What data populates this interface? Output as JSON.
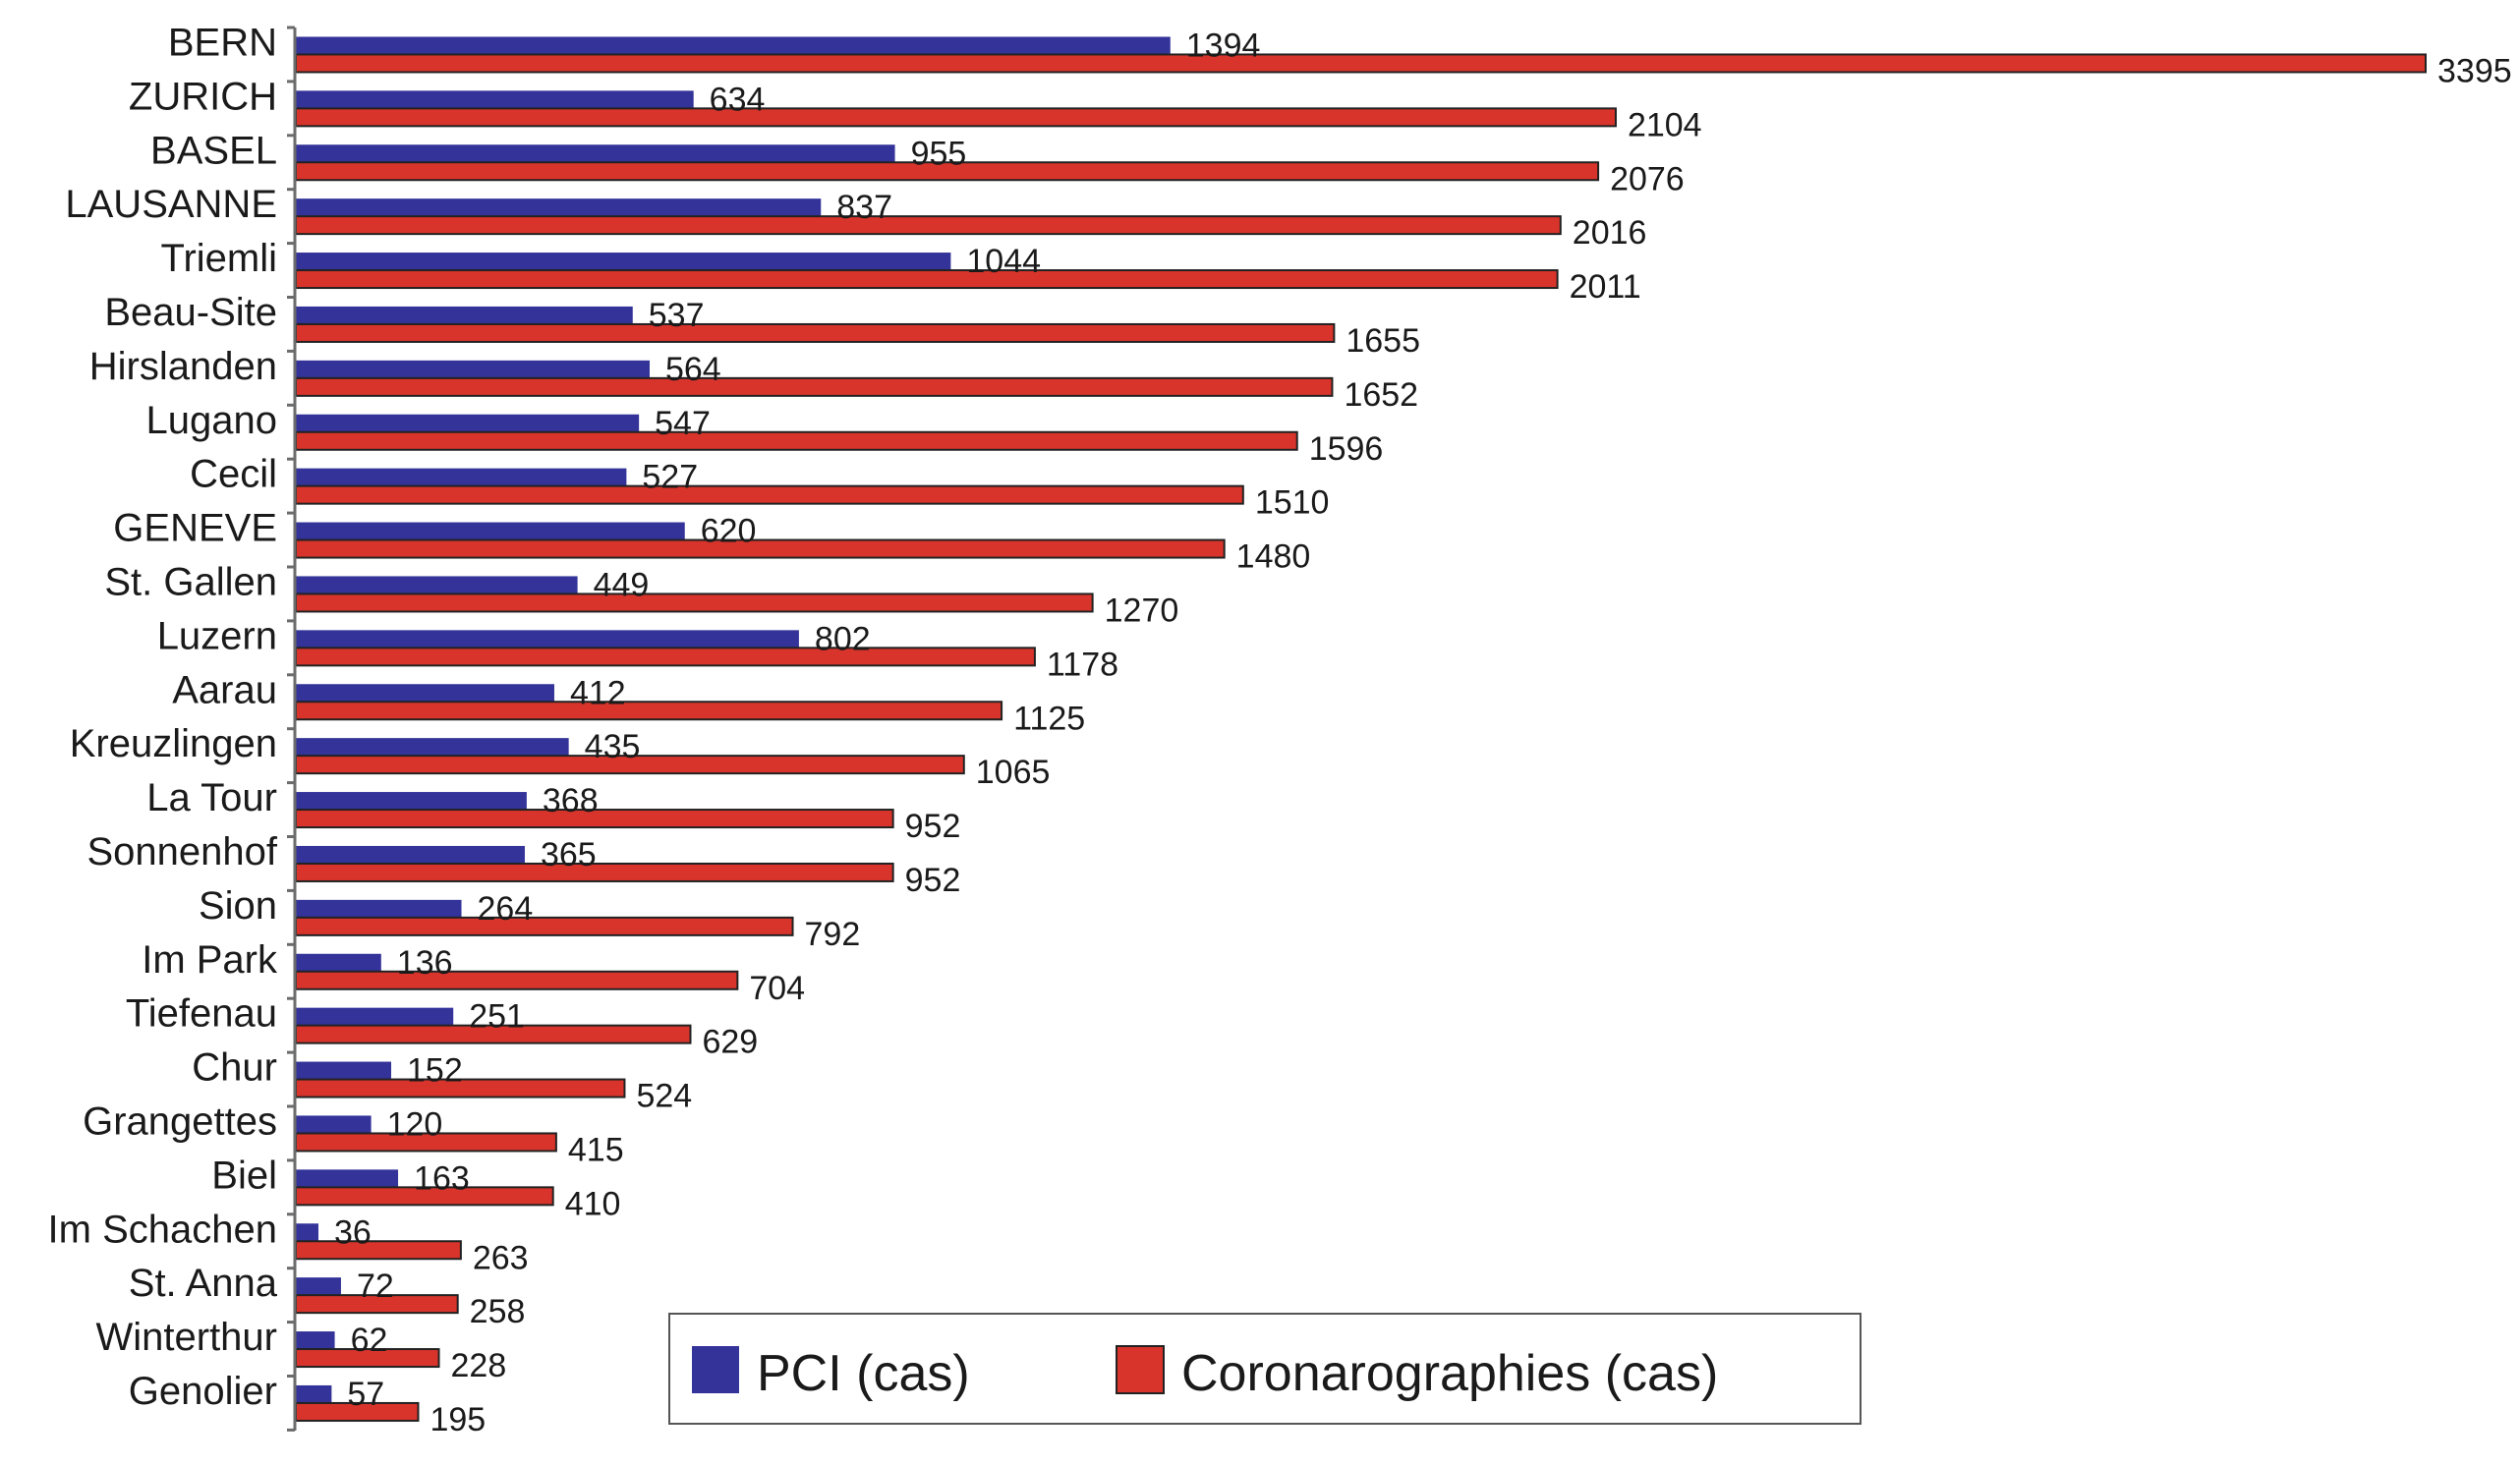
{
  "chart_data": {
    "type": "bar",
    "orientation": "horizontal",
    "title": "",
    "xlabel": "",
    "ylabel": "",
    "xlim": [
      0,
      3395
    ],
    "grid": false,
    "legend_position": "bottom-right",
    "categories": [
      "BERN",
      "ZURICH",
      "BASEL",
      "LAUSANNE",
      "Triemli",
      "Beau-Site",
      "Hirslanden",
      "Lugano",
      "Cecil",
      "GENEVE",
      "St. Gallen",
      "Luzern",
      "Aarau",
      "Kreuzlingen",
      "La Tour",
      "Sonnenhof",
      "Sion",
      "Im Park",
      "Tiefenau",
      "Chur",
      "Grangettes",
      "Biel",
      "Im Schachen",
      "St. Anna",
      "Winterthur",
      "Genolier"
    ],
    "series": [
      {
        "name": "PCI (cas)",
        "color": "#33339a",
        "values": [
          1394,
          634,
          955,
          837,
          1044,
          537,
          564,
          547,
          527,
          620,
          449,
          802,
          412,
          435,
          368,
          365,
          264,
          136,
          251,
          152,
          120,
          163,
          36,
          72,
          62,
          57
        ]
      },
      {
        "name": "Coronarographies (cas)",
        "color": "#d9342b",
        "values": [
          3395,
          2104,
          2076,
          2016,
          2011,
          1655,
          1652,
          1596,
          1510,
          1480,
          1270,
          1178,
          1125,
          1065,
          952,
          952,
          792,
          704,
          629,
          524,
          415,
          410,
          263,
          258,
          228,
          195
        ]
      }
    ]
  }
}
